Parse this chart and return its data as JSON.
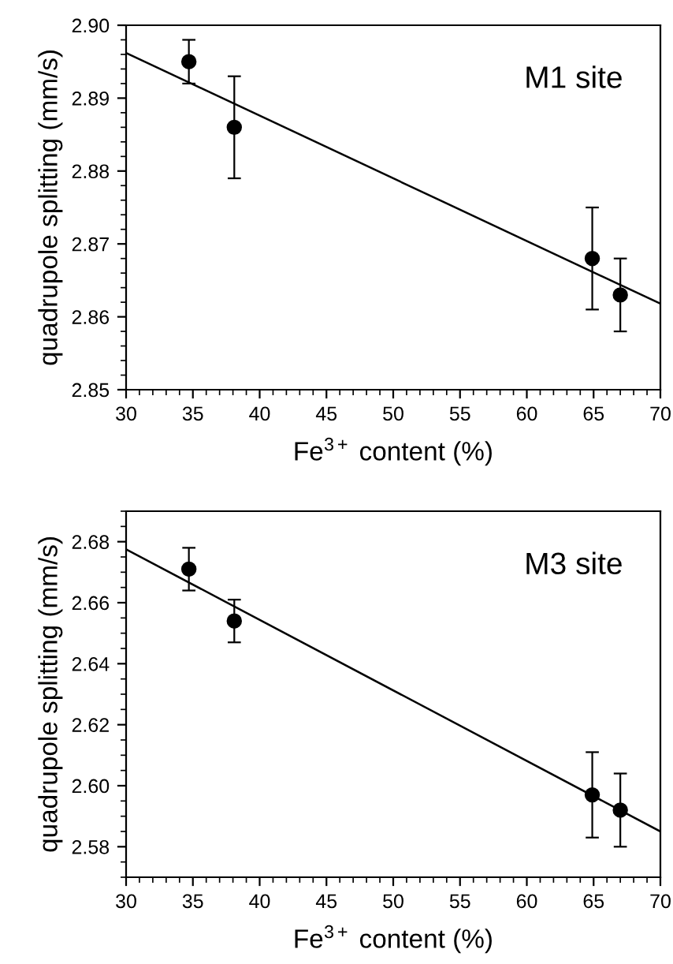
{
  "chart_data": [
    {
      "type": "scatter",
      "xlabel": "Fe$^{3+}$ content (%)",
      "ylabel": "quadrupole splitting (mm/s)",
      "annotations": [
        "M1 site"
      ],
      "xlim": [
        30,
        70
      ],
      "ylim": [
        2.85,
        2.9
      ],
      "xticks": [
        30,
        35,
        40,
        45,
        50,
        55,
        60,
        65,
        70
      ],
      "yticks": [
        2.85,
        2.86,
        2.87,
        2.88,
        2.89,
        {
          "value": 2.9,
          "label": "2.90"
        }
      ],
      "grid": false,
      "legend": false,
      "series": [
        {
          "color": "#000000",
          "marker": "circle",
          "x": [
            34.7,
            38.1,
            64.9,
            67
          ],
          "values": [
            2.895,
            2.886,
            2.868,
            2.863
          ],
          "errors": [
            0.003,
            0.007,
            0.007,
            0.005
          ]
        },
        {
          "type": "line",
          "color": "#000000",
          "marker": "none",
          "x": [
            30,
            70
          ],
          "values": [
            2.8962,
            2.8618
          ]
        }
      ]
    },
    {
      "type": "scatter",
      "xlabel": "Fe$^{3+}$ content (%)",
      "ylabel": "quadrupole splitting (mm/s)",
      "annotations": [
        "M3 site"
      ],
      "xlim": [
        30,
        70
      ],
      "ylim": [
        2.57,
        2.69
      ],
      "xticks": [
        30,
        35,
        40,
        45,
        50,
        55,
        60,
        65,
        70
      ],
      "yticks": [
        {
          "value": 2.58,
          "label": "2.58"
        },
        {
          "value": 2.6,
          "label": "2.60"
        },
        2.62,
        2.64,
        2.66,
        2.68
      ],
      "grid": false,
      "legend": false,
      "series": [
        {
          "color": "#000000",
          "marker": "circle",
          "x": [
            34.7,
            38.1,
            64.9,
            67
          ],
          "values": [
            2.671,
            2.654,
            2.597,
            2.592
          ],
          "errors": [
            0.007,
            0.007,
            0.014,
            0.012
          ]
        },
        {
          "type": "line",
          "color": "#000000",
          "marker": "none",
          "x": [
            30,
            70
          ],
          "values": [
            2.6775,
            2.585
          ]
        }
      ]
    }
  ]
}
